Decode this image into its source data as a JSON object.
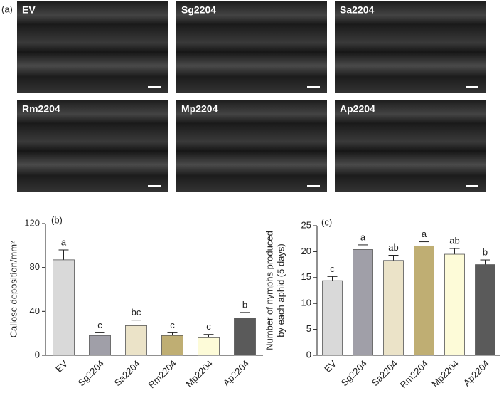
{
  "panel_a": {
    "label": "(a)",
    "images": [
      "EV",
      "Sg2204",
      "Sa2204",
      "Rm2204",
      "Mp2204",
      "Ap2204"
    ]
  },
  "chart_data": [
    {
      "type": "bar",
      "panel_label": "(b)",
      "ylabel": [
        "Callose deposition/mm²"
      ],
      "categories": [
        "EV",
        "Sg2204",
        "Sa2204",
        "Rm2204",
        "Mp2204",
        "Ap2204"
      ],
      "values": [
        87,
        18,
        27,
        18,
        16,
        34
      ],
      "errors": [
        9,
        2.5,
        5,
        2.5,
        3,
        5
      ],
      "annotations": [
        "a",
        "c",
        "bc",
        "c",
        "c",
        "b"
      ],
      "colors": [
        "#d9d9d9",
        "#a09fa8",
        "#ebe3c8",
        "#bfae73",
        "#fdfbd8",
        "#5a5a5a"
      ],
      "ylim": [
        0,
        120
      ],
      "yticks": [
        0,
        40,
        80,
        120
      ]
    },
    {
      "type": "bar",
      "panel_label": "(c)",
      "ylabel": [
        "Number of nymphs produced",
        "by each aphid (5 days)"
      ],
      "categories": [
        "EV",
        "Sg2204",
        "Sa2204",
        "Rm2204",
        "Mp2204",
        "Ap2204"
      ],
      "values": [
        14.4,
        20.4,
        18.3,
        21.1,
        19.5,
        17.5
      ],
      "errors": [
        0.8,
        0.9,
        1.0,
        0.8,
        1.1,
        0.9
      ],
      "annotations": [
        "c",
        "a",
        "ab",
        "a",
        "ab",
        "b"
      ],
      "colors": [
        "#d9d9d9",
        "#a09fa8",
        "#ebe3c8",
        "#bfae73",
        "#fdfbd8",
        "#5a5a5a"
      ],
      "ylim": [
        0,
        25
      ],
      "yticks": [
        0,
        5,
        10,
        15,
        20,
        25
      ]
    }
  ]
}
